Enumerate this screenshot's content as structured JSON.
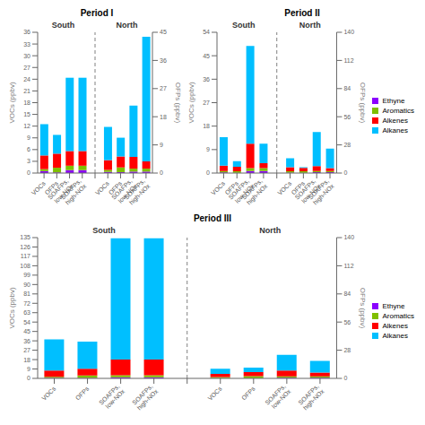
{
  "chart_data": [
    {
      "type": "bar",
      "title": "Period I",
      "categories": [
        "VOCs",
        "OFPs",
        "SOAFPs,\nlow-NOx",
        "SOAFPs,\nhigh-NOx",
        null,
        "VOCs",
        "OFPs",
        "SOAFPs,\nlow-NOx",
        "SOAFPs,\nhigh-NOx"
      ],
      "y_label": "VOCs (ppbv)",
      "y2_label": "OFPs (ppbv)",
      "ylim": [
        0,
        36
      ],
      "yticks": [
        0,
        3,
        6,
        9,
        12,
        15,
        18,
        21,
        24,
        27,
        30,
        33,
        36
      ],
      "y2lim": [
        0,
        45
      ],
      "y2ticks": [
        0,
        9,
        18,
        27,
        36,
        45
      ],
      "stacked": true,
      "annotations": [
        "South",
        "North"
      ],
      "series": [
        {
          "name": "Ethyne",
          "color": "#8B00FF",
          "values": [
            0.5,
            null,
            0.75,
            0.75,
            null,
            0.3,
            null,
            0.375,
            0.375
          ]
        },
        {
          "name": "Aromatics",
          "color": "#7FBF00",
          "values": [
            0.5,
            null,
            1.125,
            1.125,
            null,
            0.5,
            null,
            0.75,
            0.75
          ]
        },
        {
          "name": "Alkenes",
          "color": "#FF0000",
          "values": [
            3.5,
            null,
            3.75,
            3.75,
            null,
            2.5,
            null,
            3.0,
            1.875
          ]
        },
        {
          "name": "Alkanes",
          "color": "#00BFFF",
          "values": [
            8.0,
            null,
            18.75,
            18.75,
            null,
            8.5,
            null,
            13.125,
            31.875
          ]
        },
        {
          "name": "Ethyne",
          "color": "#8B00FF",
          "axis": "y2",
          "values": [
            null,
            0.2,
            null,
            null,
            null,
            null,
            0.3,
            null,
            null
          ]
        },
        {
          "name": "Aromatics",
          "color": "#7FBF00",
          "axis": "y2",
          "values": [
            null,
            1.5,
            null,
            null,
            null,
            null,
            1.5,
            null,
            null
          ]
        },
        {
          "name": "Alkenes",
          "color": "#FF0000",
          "axis": "y2",
          "values": [
            null,
            4.5,
            null,
            null,
            null,
            null,
            3.5,
            null,
            null
          ]
        },
        {
          "name": "Alkanes",
          "color": "#00BFFF",
          "axis": "y2",
          "values": [
            null,
            6.0,
            null,
            null,
            null,
            null,
            6.0,
            null,
            null
          ]
        }
      ]
    },
    {
      "type": "bar",
      "title": "Period II",
      "categories": [
        "VOCs",
        "OFPs",
        "SOAFPs,\nlow-NOx",
        "SOAFPs,\nhigh-NOx",
        null,
        "VOCs",
        "OFPs",
        "SOAFPs,\nlow-NOx",
        "SOAFPs,\nhigh-NOx"
      ],
      "y_label": "VOCs (ppbv)",
      "y2_label": "OFPs (ppbv)",
      "ylim": [
        0,
        54
      ],
      "yticks": [
        0,
        9,
        18,
        27,
        36,
        45,
        54
      ],
      "y2lim": [
        0,
        140
      ],
      "y2ticks": [
        0,
        28,
        56,
        84,
        112,
        140
      ],
      "stacked": true,
      "legend": "right",
      "annotations": [
        "South",
        "North"
      ],
      "series": [
        {
          "name": "Ethyne",
          "color": "#8B00FF",
          "values": [
            0.3,
            null,
            0.75,
            0.75,
            null,
            0.2,
            null,
            0.375,
            0.375
          ]
        },
        {
          "name": "Aromatics",
          "color": "#7FBF00",
          "values": [
            0.5,
            null,
            1.125,
            1.125,
            null,
            0.5,
            null,
            0.375,
            0.375
          ]
        },
        {
          "name": "Alkenes",
          "color": "#FF0000",
          "values": [
            2.0,
            null,
            9.375,
            1.875,
            null,
            1.5,
            null,
            1.875,
            1.125
          ]
        },
        {
          "name": "Alkanes",
          "color": "#00BFFF",
          "values": [
            11.0,
            null,
            37.5,
            7.5,
            null,
            3.5,
            null,
            13.125,
            7.5
          ]
        },
        {
          "name": "Ethyne",
          "color": "#8B00FF",
          "axis": "y2",
          "values": [
            null,
            0.3,
            null,
            null,
            null,
            null,
            0.2,
            null,
            null
          ]
        },
        {
          "name": "Aromatics",
          "color": "#7FBF00",
          "axis": "y2",
          "values": [
            null,
            1.5,
            null,
            null,
            null,
            null,
            1.5,
            null,
            null
          ]
        },
        {
          "name": "Alkenes",
          "color": "#FF0000",
          "axis": "y2",
          "values": [
            null,
            4.5,
            null,
            null,
            null,
            null,
            3.5,
            null,
            null
          ]
        },
        {
          "name": "Alkanes",
          "color": "#00BFFF",
          "axis": "y2",
          "values": [
            null,
            5.5,
            null,
            null,
            null,
            null,
            0.5,
            null,
            null
          ]
        }
      ]
    },
    {
      "type": "bar",
      "title": "Period III",
      "categories": [
        "VOCs",
        "OFPs",
        "SOAFPs,\nlow-NOx",
        "SOAFPs,\nhigh-NOx",
        null,
        "VOCs",
        "OFPs",
        "SOAFPs,\nlow-NOx",
        "SOAFPs,\nhigh-NOx"
      ],
      "y_label": "VOCs (ppbv)",
      "y2_label": "OFPs (ppbv)",
      "ylim": [
        0,
        135
      ],
      "yticks": [
        0,
        9,
        18,
        27,
        36,
        45,
        54,
        63,
        72,
        81,
        90,
        99,
        108,
        117,
        126,
        135
      ],
      "y2lim": [
        0,
        140
      ],
      "y2ticks": [
        0,
        28,
        56,
        84,
        112,
        140
      ],
      "stacked": true,
      "legend": "right",
      "annotations": [
        "South",
        "North"
      ],
      "series": [
        {
          "name": "Ethyne",
          "color": "#8B00FF",
          "values": [
            0.5,
            null,
            1.125,
            1.125,
            null,
            0.3,
            null,
            0.75,
            0.75
          ]
        },
        {
          "name": "Aromatics",
          "color": "#7FBF00",
          "values": [
            1.0,
            null,
            1.875,
            1.875,
            null,
            1.0,
            null,
            1.125,
            1.125
          ]
        },
        {
          "name": "Alkenes",
          "color": "#FF0000",
          "values": [
            6.0,
            null,
            15.0,
            15.0,
            null,
            3.0,
            null,
            5.625,
            3.75
          ]
        },
        {
          "name": "Alkanes",
          "color": "#00BFFF",
          "values": [
            30.0,
            null,
            116.25,
            116.25,
            null,
            5.0,
            null,
            15.0,
            11.25
          ]
        },
        {
          "name": "Ethyne",
          "color": "#8B00FF",
          "axis": "y2",
          "values": [
            null,
            0.5,
            null,
            null,
            null,
            null,
            0.3,
            null,
            null
          ]
        },
        {
          "name": "Aromatics",
          "color": "#7FBF00",
          "axis": "y2",
          "values": [
            null,
            2.5,
            null,
            null,
            null,
            null,
            2.0,
            null,
            null
          ]
        },
        {
          "name": "Alkenes",
          "color": "#FF0000",
          "axis": "y2",
          "values": [
            null,
            6.5,
            null,
            null,
            null,
            null,
            4.0,
            null,
            null
          ]
        },
        {
          "name": "Alkanes",
          "color": "#00BFFF",
          "axis": "y2",
          "values": [
            null,
            27.0,
            null,
            null,
            null,
            null,
            4.5,
            null,
            null
          ]
        }
      ]
    }
  ]
}
